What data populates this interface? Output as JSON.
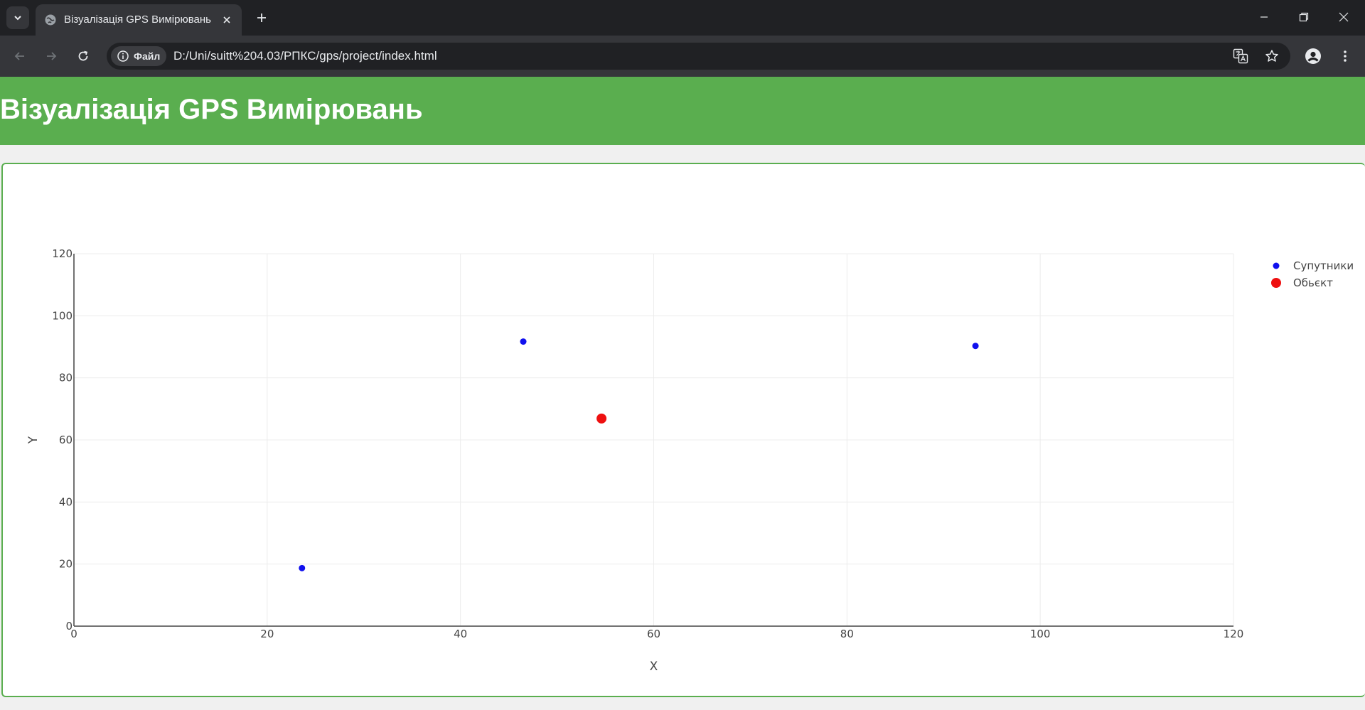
{
  "browser": {
    "tab_title": "Візуалізація GPS Вимірювань",
    "site_info_label": "Файл",
    "url": "D:/Uni/suitt%204.03/РПКС/gps/project/index.html"
  },
  "page": {
    "title": "Візуалізація GPS Вимірювань"
  },
  "chart_data": {
    "type": "scatter",
    "xlabel": "X",
    "ylabel": "Y",
    "xlim": [
      0,
      120
    ],
    "ylim": [
      0,
      120
    ],
    "x_ticks": [
      0,
      20,
      40,
      60,
      80,
      100,
      120
    ],
    "y_ticks": [
      0,
      20,
      40,
      60,
      80,
      100,
      120
    ],
    "grid": true,
    "legend_position": "top-right",
    "series": [
      {
        "name": "Супутники",
        "color": "#1010ee",
        "marker": "small",
        "x": [
          46.5,
          93.3,
          23.6
        ],
        "y": [
          91.7,
          90.3,
          18.7
        ]
      },
      {
        "name": "Обьєкт",
        "color": "#ee1010",
        "marker": "large",
        "x": [
          54.6
        ],
        "y": [
          66.9
        ]
      }
    ]
  }
}
